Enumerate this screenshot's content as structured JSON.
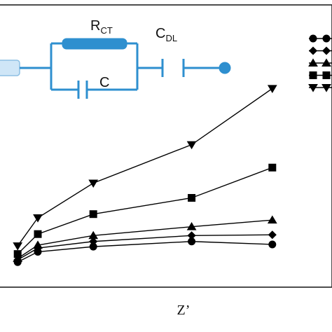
{
  "chart_data": {
    "type": "line",
    "xlabel": "Z’",
    "ylabel": "",
    "title": "",
    "grid": false,
    "legend": {
      "placement": "top-right",
      "labels_visible": false
    },
    "series": [
      {
        "name": "",
        "marker": "circle",
        "points": [
          [
            0.35,
            0.65
          ],
          [
            0.75,
            1.35
          ],
          [
            1.85,
            1.7
          ],
          [
            3.8,
            2.05
          ],
          [
            5.4,
            1.85
          ]
        ]
      },
      {
        "name": "",
        "marker": "diamond",
        "points": [
          [
            0.35,
            0.8
          ],
          [
            0.75,
            1.6
          ],
          [
            1.85,
            2.05
          ],
          [
            3.8,
            2.45
          ],
          [
            5.4,
            2.5
          ]
        ]
      },
      {
        "name": "",
        "marker": "triangle-up",
        "points": [
          [
            0.35,
            0.9
          ],
          [
            0.75,
            1.8
          ],
          [
            1.85,
            2.45
          ],
          [
            3.8,
            3.05
          ],
          [
            5.4,
            3.5
          ]
        ]
      },
      {
        "name": "",
        "marker": "square",
        "points": [
          [
            0.35,
            1.2
          ],
          [
            0.75,
            2.55
          ],
          [
            1.85,
            3.9
          ],
          [
            3.8,
            5.0
          ],
          [
            5.4,
            7.05
          ]
        ]
      },
      {
        "name": "",
        "marker": "triangle-down",
        "points": [
          [
            0.35,
            1.75
          ],
          [
            0.75,
            3.65
          ],
          [
            1.85,
            6.0
          ],
          [
            3.8,
            8.6
          ],
          [
            5.4,
            12.4
          ]
        ]
      }
    ]
  },
  "inset_circuit": {
    "color": "#2e8fcf",
    "labels": {
      "rct_main": "R",
      "rct_sub": "CT",
      "c": "C",
      "cdl_main": "C",
      "cdl_sub": "DL"
    }
  }
}
